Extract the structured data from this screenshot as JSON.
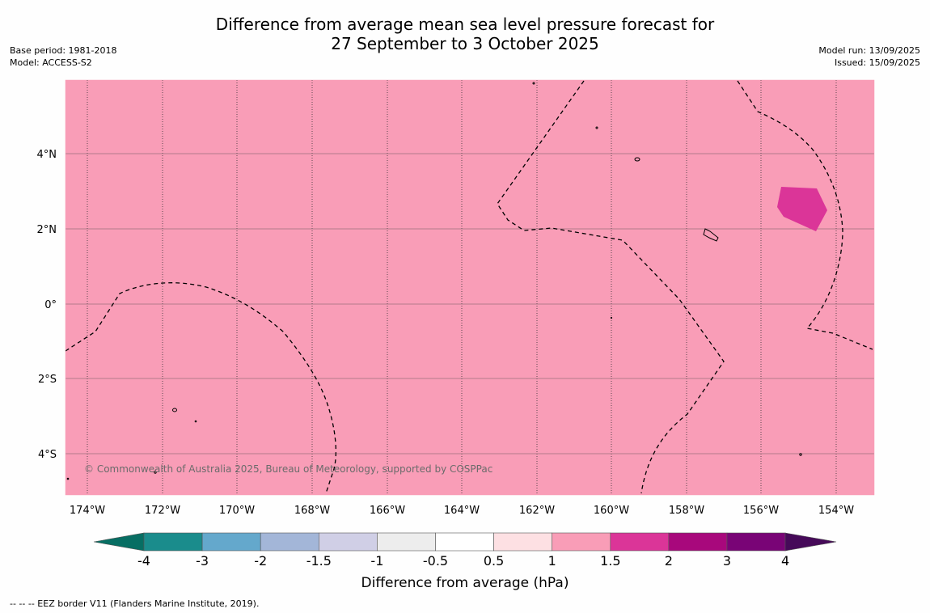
{
  "title_line1": "Difference from average mean sea level pressure forecast for",
  "title_line2": "27 September to 3 October 2025",
  "meta_left": {
    "base_period": "Base period: 1981-2018",
    "model": "Model: ACCESS-S2"
  },
  "meta_right": {
    "model_run": "Model run: 13/09/2025",
    "issued": "Issued: 15/09/2025"
  },
  "copyright": "© Commonwealth of Australia 2025, Bureau of Meteorology, supported by COSPPac",
  "footer": "--  --  -- EEZ border V11 (Flanders Marine Institute, 2019).",
  "map": {
    "background_color": "#f99db7",
    "lon_ticks": [
      "174°W",
      "172°W",
      "170°W",
      "168°W",
      "166°W",
      "164°W",
      "162°W",
      "160°W",
      "158°W",
      "156°W",
      "154°W"
    ],
    "lat_ticks": [
      "4°N",
      "2°N",
      "0°",
      "2°S",
      "4°S"
    ],
    "anomaly_patch_color": "#db3598"
  },
  "colorbar": {
    "title": "Difference from average (hPa)",
    "labels": [
      "-4",
      "-3",
      "-2",
      "-1.5",
      "-1",
      "-0.5",
      "0.5",
      "1",
      "1.5",
      "2",
      "3",
      "4"
    ],
    "colors": [
      "#1a8c8c",
      "#64a8cc",
      "#a3b6d8",
      "#d0cfe6",
      "#ededed",
      "#ffffff",
      "#fde0e3",
      "#f99db7",
      "#db3598",
      "#a8087c",
      "#790476"
    ],
    "under_color": "#076e63",
    "over_color": "#460a59"
  }
}
